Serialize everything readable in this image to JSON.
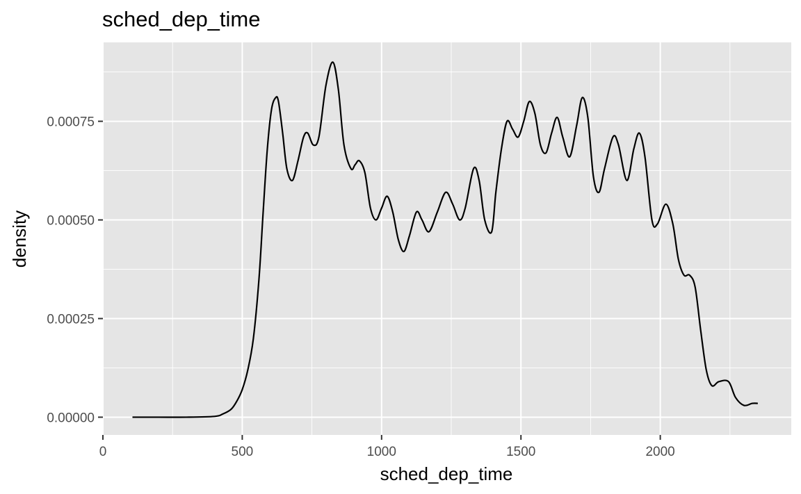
{
  "colors": {
    "panel_background": "#E5E5E5",
    "grid_major": "#FFFFFF",
    "line": "#000000",
    "tick": "#333333",
    "tick_label": "#4D4D4D"
  },
  "chart_data": {
    "type": "line",
    "geom": "density",
    "title": "sched_dep_time",
    "xlabel": "sched_dep_time",
    "ylabel": "density",
    "xlim": [
      0,
      2470
    ],
    "ylim": [
      -4.5e-05,
      0.00095
    ],
    "x_ticks": [
      0,
      500,
      1000,
      1500,
      2000
    ],
    "x_tick_labels": [
      "0",
      "500",
      "1000",
      "1500",
      "2000"
    ],
    "y_ticks": [
      0,
      0.00025,
      0.0005,
      0.00075
    ],
    "y_tick_labels": [
      "0.00000",
      "0.00025",
      "0.00050",
      "0.00075"
    ],
    "grid": true,
    "legend": "none",
    "series": [
      {
        "x": [
          106,
          200,
          300,
          400,
          430,
          460,
          480,
          500,
          520,
          540,
          560,
          575,
          590,
          605,
          620,
          630,
          645,
          660,
          680,
          700,
          720,
          735,
          755,
          775,
          800,
          825,
          845,
          865,
          890,
          905,
          920,
          940,
          960,
          980,
          1000,
          1020,
          1040,
          1060,
          1080,
          1100,
          1125,
          1145,
          1170,
          1200,
          1230,
          1255,
          1280,
          1300,
          1330,
          1350,
          1370,
          1395,
          1410,
          1430,
          1450,
          1470,
          1490,
          1510,
          1530,
          1550,
          1570,
          1590,
          1610,
          1630,
          1650,
          1675,
          1700,
          1720,
          1740,
          1760,
          1780,
          1800,
          1830,
          1850,
          1880,
          1905,
          1925,
          1945,
          1970,
          1990,
          2020,
          2045,
          2065,
          2085,
          2105,
          2125,
          2145,
          2165,
          2185,
          2210,
          2245,
          2270,
          2300,
          2330,
          2350
        ],
        "y": [
          0.0,
          0.0,
          0.0,
          2e-06,
          8e-06,
          2e-05,
          4e-05,
          7e-05,
          0.00012,
          0.0002,
          0.00035,
          0.00052,
          0.00068,
          0.00078,
          0.00081,
          0.0008,
          0.00072,
          0.00063,
          0.0006,
          0.00065,
          0.00071,
          0.00072,
          0.00069,
          0.00071,
          0.00084,
          0.0009,
          0.00083,
          0.00069,
          0.00063,
          0.00064,
          0.00065,
          0.00062,
          0.00053,
          0.0005,
          0.00053,
          0.00056,
          0.00052,
          0.00045,
          0.00042,
          0.00046,
          0.00052,
          0.0005,
          0.00047,
          0.00052,
          0.00057,
          0.00054,
          0.0005,
          0.00053,
          0.00063,
          0.0006,
          0.0005,
          0.00047,
          0.00057,
          0.00068,
          0.00075,
          0.00073,
          0.00071,
          0.00075,
          0.0008,
          0.00077,
          0.00069,
          0.00067,
          0.00072,
          0.00076,
          0.00071,
          0.00066,
          0.00074,
          0.00081,
          0.00076,
          0.00061,
          0.00057,
          0.00063,
          0.00071,
          0.00069,
          0.0006,
          0.00068,
          0.00072,
          0.00066,
          0.0005,
          0.00049,
          0.00054,
          0.00049,
          0.0004,
          0.00036,
          0.00036,
          0.00033,
          0.00022,
          0.00012,
          8e-05,
          9e-05,
          9e-05,
          5e-05,
          3e-05,
          3.5e-05,
          3.5e-05
        ]
      }
    ]
  }
}
